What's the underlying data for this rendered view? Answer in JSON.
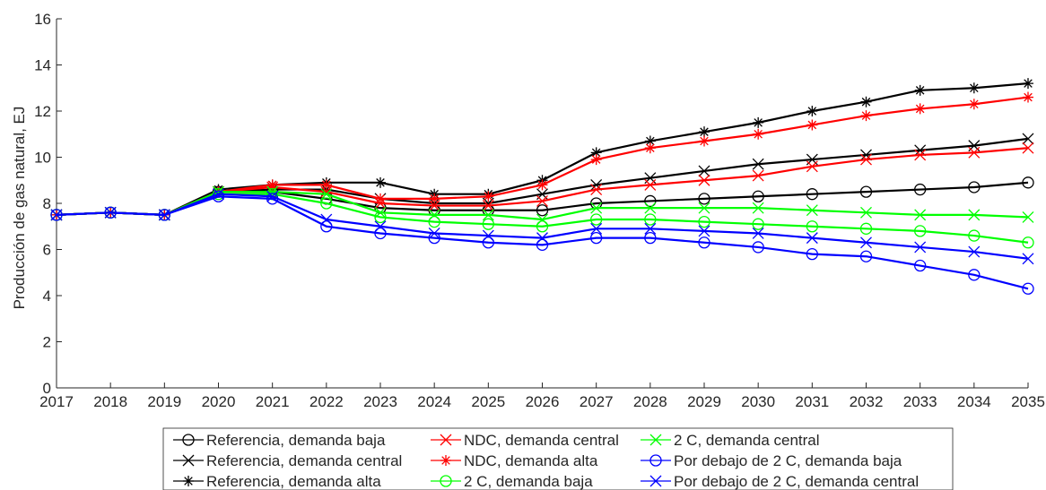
{
  "chart_data": {
    "type": "line",
    "ylabel": "Producción de gas natural, EJ",
    "xlabel": "",
    "ylim": [
      0,
      16
    ],
    "yticks": [
      0,
      2,
      4,
      6,
      8,
      10,
      12,
      14,
      16
    ],
    "x": [
      2017,
      2018,
      2019,
      2020,
      2021,
      2022,
      2023,
      2024,
      2025,
      2026,
      2027,
      2028,
      2029,
      2030,
      2031,
      2032,
      2033,
      2034,
      2035
    ],
    "legend_position": "bottom",
    "series": [
      {
        "name": "Referencia, demanda baja",
        "color": "#000000",
        "marker": "circle",
        "values": [
          7.5,
          7.6,
          7.5,
          8.5,
          8.5,
          8.2,
          7.8,
          7.7,
          7.7,
          7.7,
          8.0,
          8.1,
          8.2,
          8.3,
          8.4,
          8.5,
          8.6,
          8.7,
          8.9
        ]
      },
      {
        "name": "Referencia, demanda central",
        "color": "#000000",
        "marker": "x",
        "values": [
          7.5,
          7.6,
          7.5,
          8.5,
          8.6,
          8.6,
          8.2,
          8.0,
          8.0,
          8.4,
          8.8,
          9.1,
          9.4,
          9.7,
          9.9,
          10.1,
          10.3,
          10.5,
          10.8
        ]
      },
      {
        "name": "Referencia, demanda alta",
        "color": "#000000",
        "marker": "star",
        "values": [
          7.5,
          7.6,
          7.5,
          8.6,
          8.8,
          8.9,
          8.9,
          8.4,
          8.4,
          9.0,
          10.2,
          10.7,
          11.1,
          11.5,
          12.0,
          12.4,
          12.9,
          13.0,
          13.2
        ]
      },
      {
        "name": "NDC, demanda central",
        "color": "#ff0000",
        "marker": "x",
        "values": [
          7.5,
          7.6,
          7.5,
          8.5,
          8.7,
          8.5,
          8.0,
          7.9,
          7.9,
          8.1,
          8.6,
          8.8,
          9.0,
          9.2,
          9.6,
          9.9,
          10.1,
          10.2,
          10.4
        ]
      },
      {
        "name": "NDC, demanda alta",
        "color": "#ff0000",
        "marker": "star",
        "values": [
          7.5,
          7.6,
          7.5,
          8.5,
          8.8,
          8.8,
          8.2,
          8.2,
          8.3,
          8.8,
          9.9,
          10.4,
          10.7,
          11.0,
          11.4,
          11.8,
          12.1,
          12.3,
          12.6
        ]
      },
      {
        "name": "2 C, demanda baja",
        "color": "#00ff00",
        "marker": "circle",
        "values": [
          7.5,
          7.6,
          7.5,
          8.4,
          8.4,
          8.0,
          7.4,
          7.2,
          7.1,
          7.0,
          7.3,
          7.3,
          7.2,
          7.1,
          7.0,
          6.9,
          6.8,
          6.6,
          6.3
        ]
      },
      {
        "name": "2 C, demanda central",
        "color": "#00ff00",
        "marker": "x",
        "values": [
          7.5,
          7.6,
          7.5,
          8.5,
          8.5,
          8.4,
          7.6,
          7.5,
          7.5,
          7.3,
          7.8,
          7.8,
          7.8,
          7.8,
          7.7,
          7.6,
          7.5,
          7.5,
          7.4
        ]
      },
      {
        "name": "Por debajo de 2 C, demanda baja",
        "color": "#0000ff",
        "marker": "circle",
        "values": [
          7.5,
          7.6,
          7.5,
          8.3,
          8.2,
          7.0,
          6.7,
          6.5,
          6.3,
          6.2,
          6.5,
          6.5,
          6.3,
          6.1,
          5.8,
          5.7,
          5.3,
          4.9,
          4.3
        ]
      },
      {
        "name": "Por debajo de 2 C, demanda central",
        "color": "#0000ff",
        "marker": "x",
        "values": [
          7.5,
          7.6,
          7.5,
          8.4,
          8.3,
          7.3,
          7.0,
          6.7,
          6.6,
          6.5,
          6.9,
          6.9,
          6.8,
          6.7,
          6.5,
          6.3,
          6.1,
          5.9,
          5.6
        ]
      }
    ]
  }
}
